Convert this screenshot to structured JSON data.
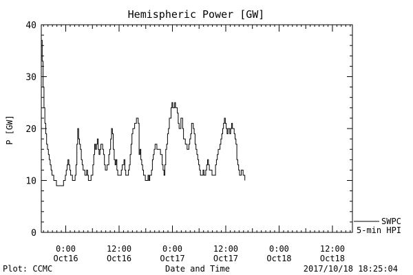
{
  "chart_data": {
    "type": "line",
    "title": "Hemispheric Power [GW]",
    "xlabel": "Date and Time",
    "ylabel": "P [GW]",
    "ylim": [
      0,
      40
    ],
    "yticks": [
      0,
      10,
      20,
      30,
      40
    ],
    "xlim": [
      -5.5,
      64.5
    ],
    "x_unit": "hours from 2017-10-16 00:00 UTC",
    "xticks": [
      {
        "x": 0,
        "time": "0:00",
        "date": "Oct16"
      },
      {
        "x": 12,
        "time": "12:00",
        "date": "Oct16"
      },
      {
        "x": 24,
        "time": "0:00",
        "date": "Oct17"
      },
      {
        "x": 36,
        "time": "12:00",
        "date": "Oct17"
      },
      {
        "x": 48,
        "time": "0:00",
        "date": "Oct18"
      },
      {
        "x": 60,
        "time": "12:00",
        "date": "Oct18"
      }
    ],
    "legend": {
      "placement": "lower-right-outside",
      "source": "SWPC",
      "label": "5-min HPI"
    },
    "grid": false,
    "series": [
      {
        "name": "SWPC 5-min HPI",
        "color": "#000000",
        "points": [
          [
            -5.5,
            37
          ],
          [
            -5.3,
            33
          ],
          [
            -5.1,
            28
          ],
          [
            -4.9,
            24
          ],
          [
            -4.7,
            21
          ],
          [
            -4.5,
            19
          ],
          [
            -4.3,
            17
          ],
          [
            -4.1,
            16
          ],
          [
            -3.9,
            15
          ],
          [
            -3.7,
            14
          ],
          [
            -3.5,
            13
          ],
          [
            -3.3,
            12
          ],
          [
            -3.1,
            11
          ],
          [
            -2.9,
            11
          ],
          [
            -2.7,
            10
          ],
          [
            -2.5,
            10
          ],
          [
            -2.3,
            10
          ],
          [
            -2.1,
            9
          ],
          [
            -1.9,
            9
          ],
          [
            -1.7,
            9
          ],
          [
            -1.5,
            9
          ],
          [
            -1.3,
            9
          ],
          [
            -1.1,
            9
          ],
          [
            -0.9,
            9
          ],
          [
            -0.7,
            9
          ],
          [
            -0.5,
            10
          ],
          [
            -0.3,
            10
          ],
          [
            -0.1,
            11
          ],
          [
            0.1,
            12
          ],
          [
            0.3,
            13
          ],
          [
            0.5,
            14
          ],
          [
            0.7,
            13
          ],
          [
            0.9,
            12
          ],
          [
            1.1,
            11
          ],
          [
            1.3,
            11
          ],
          [
            1.5,
            10
          ],
          [
            1.7,
            10
          ],
          [
            1.9,
            10
          ],
          [
            2.1,
            11
          ],
          [
            2.3,
            13
          ],
          [
            2.5,
            17
          ],
          [
            2.7,
            20
          ],
          [
            2.9,
            18
          ],
          [
            3.1,
            17
          ],
          [
            3.3,
            16
          ],
          [
            3.5,
            14
          ],
          [
            3.7,
            13
          ],
          [
            3.9,
            12
          ],
          [
            4.1,
            12
          ],
          [
            4.3,
            11
          ],
          [
            4.5,
            11
          ],
          [
            4.7,
            12
          ],
          [
            4.9,
            11
          ],
          [
            5.1,
            10
          ],
          [
            5.3,
            10
          ],
          [
            5.5,
            10
          ],
          [
            5.7,
            11
          ],
          [
            5.9,
            11
          ],
          [
            6.1,
            13
          ],
          [
            6.3,
            15
          ],
          [
            6.5,
            17
          ],
          [
            6.7,
            16
          ],
          [
            6.9,
            17
          ],
          [
            7.1,
            18
          ],
          [
            7.3,
            16
          ],
          [
            7.5,
            15
          ],
          [
            7.7,
            16
          ],
          [
            7.9,
            17
          ],
          [
            8.1,
            17
          ],
          [
            8.3,
            16
          ],
          [
            8.5,
            15
          ],
          [
            8.7,
            13
          ],
          [
            8.9,
            12
          ],
          [
            9.1,
            12
          ],
          [
            9.3,
            13
          ],
          [
            9.5,
            13
          ],
          [
            9.7,
            15
          ],
          [
            9.9,
            16
          ],
          [
            10.1,
            18
          ],
          [
            10.3,
            20
          ],
          [
            10.5,
            19
          ],
          [
            10.7,
            16
          ],
          [
            10.9,
            14
          ],
          [
            11.1,
            13
          ],
          [
            11.3,
            14
          ],
          [
            11.5,
            12
          ],
          [
            11.7,
            11
          ],
          [
            11.9,
            11
          ],
          [
            12.1,
            11
          ],
          [
            12.3,
            11
          ],
          [
            12.5,
            12
          ],
          [
            12.7,
            13
          ],
          [
            12.9,
            13
          ],
          [
            13.1,
            14
          ],
          [
            13.3,
            12
          ],
          [
            13.5,
            11
          ],
          [
            13.7,
            11
          ],
          [
            13.9,
            11
          ],
          [
            14.1,
            12
          ],
          [
            14.3,
            13
          ],
          [
            14.5,
            15
          ],
          [
            14.7,
            17
          ],
          [
            14.9,
            19
          ],
          [
            15.1,
            20
          ],
          [
            15.3,
            20
          ],
          [
            15.5,
            21
          ],
          [
            15.7,
            21
          ],
          [
            15.9,
            22
          ],
          [
            16.1,
            22
          ],
          [
            16.3,
            21
          ],
          [
            16.5,
            15
          ],
          [
            16.7,
            16
          ],
          [
            16.9,
            14
          ],
          [
            17.1,
            13
          ],
          [
            17.3,
            12
          ],
          [
            17.5,
            11
          ],
          [
            17.7,
            11
          ],
          [
            17.9,
            10
          ],
          [
            18.1,
            10
          ],
          [
            18.3,
            10
          ],
          [
            18.5,
            11
          ],
          [
            18.7,
            10
          ],
          [
            18.9,
            11
          ],
          [
            19.1,
            11
          ],
          [
            19.3,
            12
          ],
          [
            19.5,
            14
          ],
          [
            19.7,
            15
          ],
          [
            19.9,
            16
          ],
          [
            20.1,
            17
          ],
          [
            20.3,
            17
          ],
          [
            20.5,
            16
          ],
          [
            20.7,
            16
          ],
          [
            20.9,
            16
          ],
          [
            21.1,
            16
          ],
          [
            21.3,
            15
          ],
          [
            21.5,
            15
          ],
          [
            21.7,
            13
          ],
          [
            21.9,
            12
          ],
          [
            22.1,
            11
          ],
          [
            22.3,
            13
          ],
          [
            22.5,
            16
          ],
          [
            22.7,
            17
          ],
          [
            22.9,
            19
          ],
          [
            23.1,
            20
          ],
          [
            23.3,
            22
          ],
          [
            23.5,
            22
          ],
          [
            23.7,
            24
          ],
          [
            23.9,
            25
          ],
          [
            24.1,
            24
          ],
          [
            24.3,
            24
          ],
          [
            24.5,
            25
          ],
          [
            24.7,
            24
          ],
          [
            24.9,
            24
          ],
          [
            25.1,
            23
          ],
          [
            25.3,
            21
          ],
          [
            25.5,
            20
          ],
          [
            25.7,
            20
          ],
          [
            25.9,
            22
          ],
          [
            26.1,
            22
          ],
          [
            26.3,
            20
          ],
          [
            26.5,
            18
          ],
          [
            26.7,
            18
          ],
          [
            26.9,
            17
          ],
          [
            27.1,
            17
          ],
          [
            27.3,
            16
          ],
          [
            27.5,
            16
          ],
          [
            27.7,
            17
          ],
          [
            27.9,
            18
          ],
          [
            28.1,
            19
          ],
          [
            28.3,
            21
          ],
          [
            28.5,
            21
          ],
          [
            28.7,
            20
          ],
          [
            28.9,
            19
          ],
          [
            29.1,
            17
          ],
          [
            29.3,
            16
          ],
          [
            29.5,
            15
          ],
          [
            29.7,
            14
          ],
          [
            29.9,
            13
          ],
          [
            30.1,
            12
          ],
          [
            30.3,
            11
          ],
          [
            30.5,
            11
          ],
          [
            30.7,
            11
          ],
          [
            30.9,
            12
          ],
          [
            31.1,
            11
          ],
          [
            31.3,
            11
          ],
          [
            31.5,
            12
          ],
          [
            31.7,
            13
          ],
          [
            31.9,
            14
          ],
          [
            32.1,
            13
          ],
          [
            32.3,
            12
          ],
          [
            32.5,
            12
          ],
          [
            32.7,
            12
          ],
          [
            32.9,
            11
          ],
          [
            33.1,
            11
          ],
          [
            33.3,
            11
          ],
          [
            33.5,
            11
          ],
          [
            33.7,
            13
          ],
          [
            33.9,
            14
          ],
          [
            34.1,
            15
          ],
          [
            34.3,
            16
          ],
          [
            34.5,
            16
          ],
          [
            34.7,
            17
          ],
          [
            34.9,
            18
          ],
          [
            35.1,
            19
          ],
          [
            35.3,
            20
          ],
          [
            35.5,
            21
          ],
          [
            35.7,
            22
          ],
          [
            35.9,
            21
          ],
          [
            36.1,
            20
          ],
          [
            36.3,
            19
          ],
          [
            36.5,
            20
          ],
          [
            36.7,
            20
          ],
          [
            36.9,
            19
          ],
          [
            37.1,
            20
          ],
          [
            37.3,
            21
          ],
          [
            37.5,
            20
          ],
          [
            37.7,
            20
          ],
          [
            37.9,
            19
          ],
          [
            38.1,
            18
          ],
          [
            38.3,
            17
          ],
          [
            38.5,
            14
          ],
          [
            38.7,
            13
          ],
          [
            38.9,
            12
          ],
          [
            39.1,
            11
          ],
          [
            39.3,
            11
          ],
          [
            39.5,
            12
          ],
          [
            39.7,
            12
          ],
          [
            39.9,
            11
          ],
          [
            40.1,
            11
          ],
          [
            40.3,
            10
          ]
        ]
      }
    ]
  },
  "footer": {
    "left": "Plot: CCMC",
    "center": "Date and Time",
    "right": "2017/10/18 18:25:04"
  }
}
